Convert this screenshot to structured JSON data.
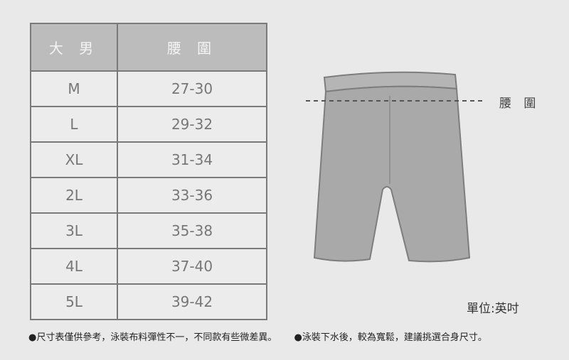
{
  "table": {
    "headers": [
      "大 男",
      "腰 圍"
    ],
    "rows": [
      {
        "size": "M",
        "waist": "27-30"
      },
      {
        "size": "L",
        "waist": "29-32"
      },
      {
        "size": "XL",
        "waist": "31-34"
      },
      {
        "size": "2L",
        "waist": "33-36"
      },
      {
        "size": "3L",
        "waist": "35-38"
      },
      {
        "size": "4L",
        "waist": "37-40"
      },
      {
        "size": "5L",
        "waist": "39-42"
      }
    ]
  },
  "diagram": {
    "waist_label": "腰 圍",
    "icon": "shorts-illustration"
  },
  "unit_label": "單位:英吋",
  "notes": [
    "●尺寸表僅供參考，泳裝布料彈性不一，不同款有些微差異。",
    "●泳裝下水後，較為寬鬆，建議挑選合身尺寸。"
  ],
  "colors": {
    "header_bg": "#bcbcbc",
    "cell_bg": "#ececec",
    "shorts": "#a9a9a9",
    "background": "#e9e9e9"
  }
}
